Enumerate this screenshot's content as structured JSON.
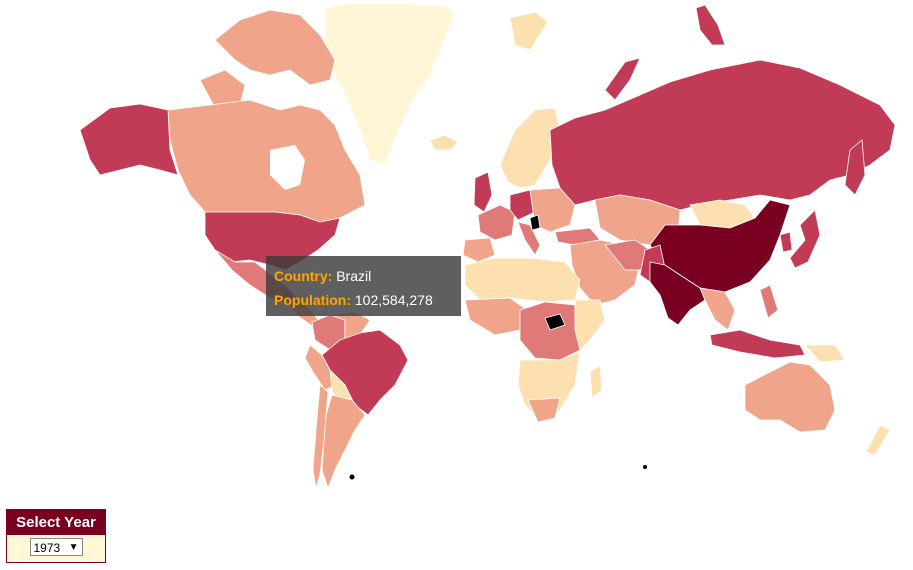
{
  "tooltip": {
    "country_label": "Country:",
    "country_value": "Brazil",
    "population_label": "Population:",
    "population_value": "102,584,278"
  },
  "year_selector": {
    "title": "Select Year",
    "selected": "1973",
    "arrow_icon": "chevron-down-icon"
  },
  "colors": {
    "very_low": "#fff5d6",
    "low": "#fde0b0",
    "medium_low": "#f5a88a",
    "medium": "#e07a78",
    "high": "#c03a58",
    "very_high": "#7a0022",
    "no_data": "#000000"
  }
}
